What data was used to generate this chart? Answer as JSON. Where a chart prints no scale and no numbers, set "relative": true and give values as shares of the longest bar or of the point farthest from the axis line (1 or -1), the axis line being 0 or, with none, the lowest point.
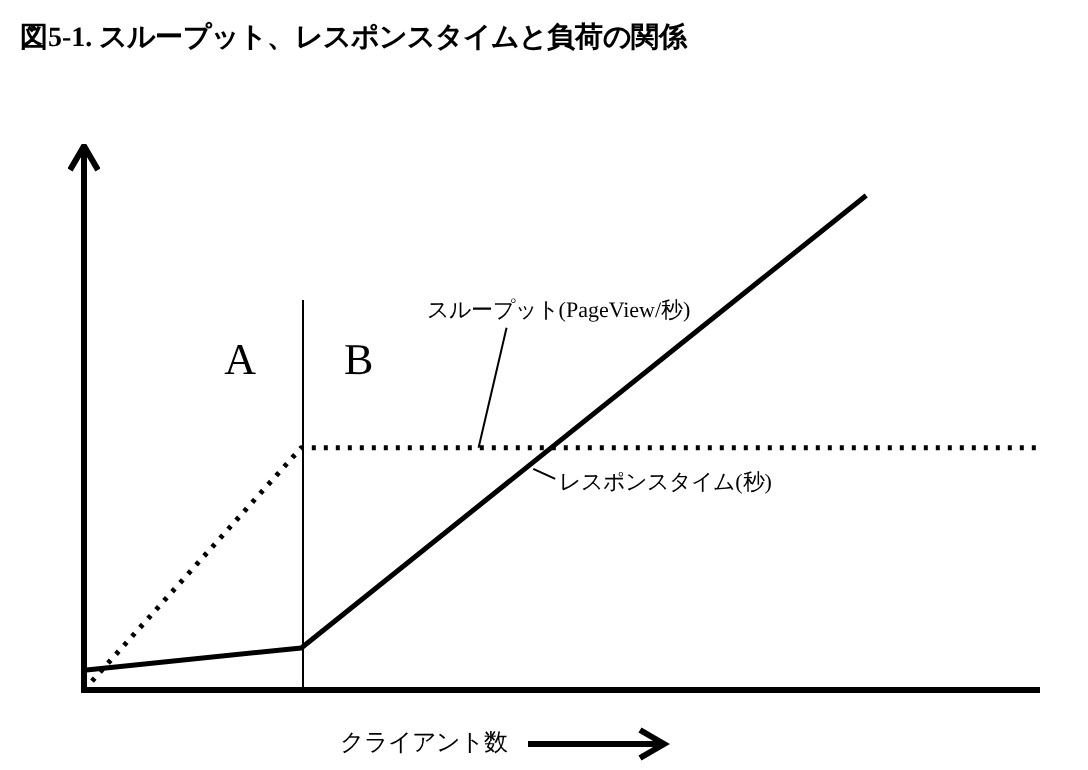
{
  "chart_data": {
    "type": "line",
    "title": "図5-1. スループット、レスポンスタイムと負荷の関係",
    "xlabel": "クライアント数",
    "relative": true,
    "categories": [
      null,
      null,
      null,
      null,
      null,
      null,
      null,
      null,
      null,
      null,
      null,
      null,
      null,
      null,
      null,
      null,
      null,
      null,
      null,
      null,
      null,
      null,
      null
    ],
    "series": [
      {
        "name": "スループット(PageView/秒)",
        "color": "#000000",
        "line_style": "dotted",
        "values": [
          0,
          null,
          null,
          null,
          null,
          0.49,
          null,
          null,
          null,
          null,
          null,
          null,
          null,
          null,
          null,
          null,
          null,
          null,
          null,
          null,
          null,
          null,
          0.49
        ]
      },
      {
        "name": "レスポンスタイム(秒)",
        "color": "#000000",
        "line_style": "solid",
        "values": [
          0.04,
          null,
          null,
          null,
          null,
          0.085,
          null,
          null,
          null,
          null,
          null,
          null,
          null,
          null,
          null,
          null,
          null,
          null,
          1,
          null,
          null,
          null,
          null
        ]
      }
    ],
    "annotations": [
      "A",
      "B"
    ],
    "marker": "none"
  }
}
